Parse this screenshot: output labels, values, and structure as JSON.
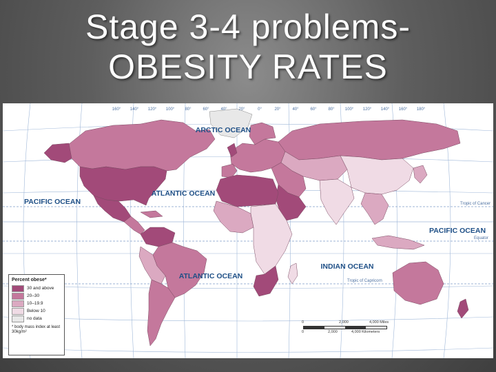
{
  "title": {
    "line1": "Stage 3-4 problems-",
    "line2": "OBESITY RATES"
  },
  "map": {
    "oceans": {
      "arctic": "ARCTIC OCEAN",
      "atlantic_north": "ATLANTIC OCEAN",
      "atlantic_south": "ATLANTIC OCEAN",
      "pacific_east": "PACIFIC OCEAN",
      "pacific_west": "PACIFIC OCEAN",
      "indian": "INDIAN OCEAN"
    },
    "lines": {
      "tropic_cancer": "Tropic of Cancer",
      "equator": "Equator",
      "tropic_capricorn": "Tropic of Capricorn"
    },
    "longitude_ticks": [
      "160°",
      "140°",
      "120°",
      "100°",
      "80°",
      "60°",
      "40°",
      "20°",
      "0°",
      "20°",
      "40°",
      "60°",
      "80°",
      "100°",
      "120°",
      "140°",
      "160°",
      "180°"
    ],
    "colors": {
      "cat_30_above": "#a24a79",
      "cat_20_30": "#c4789c",
      "cat_10_19": "#dba9c1",
      "cat_below_10": "#f0dbe5",
      "cat_no_data": "#e8e8e8",
      "water": "#ffffff",
      "grid": "#9fb7d8"
    }
  },
  "legend": {
    "title": "Percent obese*",
    "items": [
      {
        "label": "30 and above",
        "color": "#a24a79"
      },
      {
        "label": "20–30",
        "color": "#c4789c"
      },
      {
        "label": "10–19.9",
        "color": "#dba9c1"
      },
      {
        "label": "Below 10",
        "color": "#f0dbe5"
      },
      {
        "label": "no data",
        "color": "#e8e8e8"
      }
    ],
    "note": "* body mass index at least 30kg/m²"
  },
  "scale": {
    "miles_start": "0",
    "miles_mid": "2,000",
    "miles_end": "4,000 Miles",
    "km_start": "0",
    "km_mid": "2,000",
    "km_end": "4,000 Kilometers"
  }
}
